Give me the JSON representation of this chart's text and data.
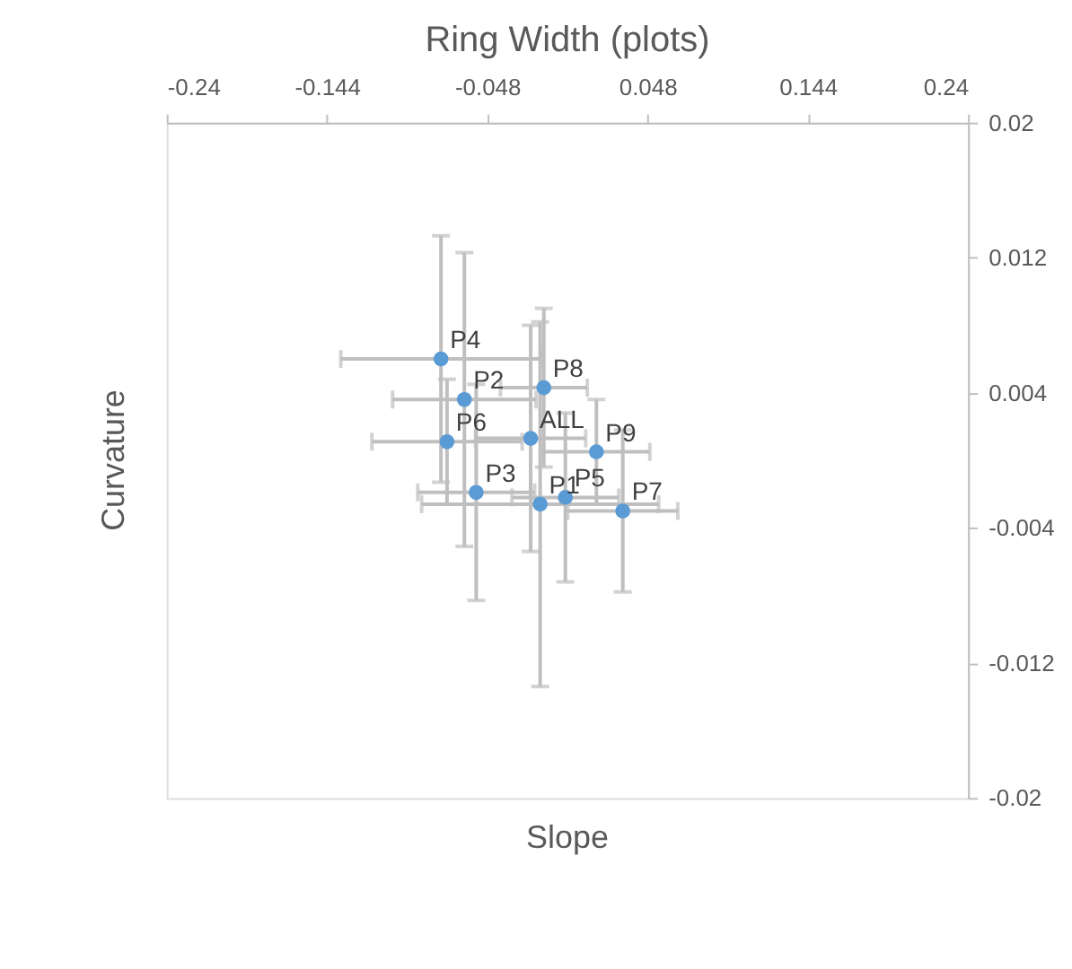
{
  "chart_data": {
    "type": "scatter",
    "title": "Ring Width (plots)",
    "xlabel": "Slope",
    "ylabel": "Curvature",
    "x": [
      -0.0163,
      -0.0617,
      -0.0546,
      -0.0757,
      -0.0012,
      -0.0721,
      0.0332,
      -0.0141,
      0.0174,
      -0.022
    ],
    "series": [
      {
        "color": "#5b9bd5",
        "values": [
          -0.0026,
          0.0036,
          -0.0019,
          0.006,
          -0.0022,
          0.0011,
          -0.003,
          0.0043,
          0.0005,
          0.0013
        ],
        "errors": [
          0.0108,
          0.0087,
          0.0064,
          0.0073,
          0.005,
          0.0037,
          0.0048,
          0.0047,
          0.0031,
          0.0067
        ],
        "xerrors": [
          0.071,
          0.043,
          0.035,
          0.06,
          0.032,
          0.045,
          0.033,
          0.026,
          0.032,
          0.033
        ]
      }
    ],
    "annotations": [
      {
        "text": "P1",
        "x": -0.0163,
        "y": -0.0026
      },
      {
        "text": "P2",
        "x": -0.0617,
        "y": 0.0036
      },
      {
        "text": "P3",
        "x": -0.0546,
        "y": -0.0019
      },
      {
        "text": "P4",
        "x": -0.0757,
        "y": 0.006
      },
      {
        "text": "P5",
        "x": -0.0012,
        "y": -0.0022
      },
      {
        "text": "P6",
        "x": -0.0721,
        "y": 0.0011
      },
      {
        "text": "P7",
        "x": 0.0332,
        "y": -0.003
      },
      {
        "text": "P8",
        "x": -0.0141,
        "y": 0.0043
      },
      {
        "text": "P9",
        "x": 0.0174,
        "y": 0.0005
      },
      {
        "text": "ALL",
        "x": -0.022,
        "y": 0.0013
      }
    ],
    "xlim": [
      -0.24,
      0.24
    ],
    "xticks": [
      -0.24,
      -0.144,
      -0.048,
      0.048,
      0.144,
      0.24
    ],
    "ylim": [
      -0.02,
      0.02
    ],
    "yticks": [
      0.02,
      0.012,
      0.004,
      -0.004,
      -0.012,
      -0.02
    ],
    "marker": "circle",
    "grid": false,
    "legend": false
  }
}
